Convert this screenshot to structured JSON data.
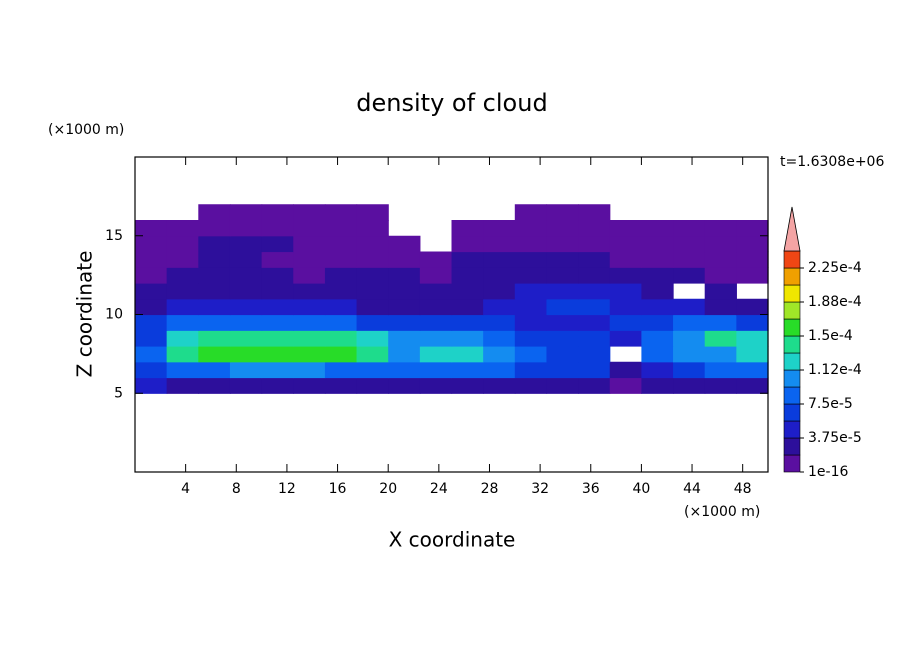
{
  "chart_data": {
    "type": "contour",
    "title": "density of cloud",
    "x_label": "X coordinate",
    "y_label": "Z coordinate",
    "x_unit": "(×1000 m)",
    "y_unit": "(×1000 m)",
    "annotation": "t=1.6308e+06",
    "xlim": [
      0,
      50
    ],
    "ylim": [
      0,
      20
    ],
    "xticks": [
      4,
      8,
      12,
      16,
      20,
      24,
      28,
      32,
      36,
      40,
      44,
      48
    ],
    "yticks": [
      5,
      10,
      15
    ],
    "x": [
      1.25,
      3.75,
      6.25,
      8.75,
      11.25,
      13.75,
      16.25,
      18.75,
      21.25,
      23.75,
      26.25,
      28.75,
      31.25,
      33.75,
      36.25,
      38.75,
      41.25,
      43.75,
      46.25,
      48.75
    ],
    "y": [
      5.5,
      6.5,
      7.5,
      8.5,
      9.5,
      10.5,
      11.5,
      12.5,
      13.5,
      14.5,
      15.5,
      16.5
    ],
    "values": [
      [
        4e-05,
        3e-05,
        3e-05,
        3e-05,
        3e-05,
        3e-05,
        3e-05,
        3e-05,
        2e-05,
        2e-05,
        2e-05,
        2e-05,
        2e-05,
        2e-05,
        2e-05,
        1e-05,
        2e-05,
        2e-05,
        3e-05,
        3e-05
      ],
      [
        6e-05,
        9e-05,
        9e-05,
        0.0001,
        0.0001,
        0.0001,
        9e-05,
        9e-05,
        8e-05,
        8e-05,
        8e-05,
        8e-05,
        7e-05,
        6e-05,
        6e-05,
        3e-05,
        5e-05,
        7e-05,
        8e-05,
        8e-05
      ],
      [
        8e-05,
        0.00014,
        0.000155,
        0.00016,
        0.000155,
        0.00016,
        0.000155,
        0.00014,
        0.00011,
        0.000115,
        0.000115,
        0.00011,
        8e-05,
        7e-05,
        6e-05,
        null,
        8e-05,
        0.0001,
        0.00011,
        0.00012
      ],
      [
        7e-05,
        0.00012,
        0.000135,
        0.00014,
        0.00014,
        0.000145,
        0.00014,
        0.00012,
        0.000105,
        0.0001,
        0.0001,
        9e-05,
        7e-05,
        6e-05,
        6e-05,
        5e-05,
        8e-05,
        0.0001,
        0.000135,
        0.00012
      ],
      [
        6e-05,
        8e-05,
        8e-05,
        8e-05,
        8e-05,
        8e-05,
        8e-05,
        7e-05,
        7e-05,
        6e-05,
        6e-05,
        6e-05,
        5e-05,
        5e-05,
        5e-05,
        6e-05,
        7e-05,
        8e-05,
        8e-05,
        7e-05
      ],
      [
        3e-05,
        4e-05,
        4e-05,
        4e-05,
        4e-05,
        4e-05,
        4e-05,
        3e-05,
        3e-05,
        3e-05,
        3e-05,
        4e-05,
        5e-05,
        6e-05,
        6e-05,
        5e-05,
        4e-05,
        4e-05,
        3e-05,
        3e-05
      ],
      [
        2e-05,
        2e-05,
        2e-05,
        3e-05,
        2e-05,
        2e-05,
        2e-05,
        2e-05,
        2e-05,
        2e-05,
        2e-05,
        3e-05,
        4e-05,
        4e-05,
        5e-05,
        4e-05,
        3e-05,
        null,
        2e-05,
        null
      ],
      [
        1e-05,
        2e-05,
        2e-05,
        2e-05,
        2e-05,
        1e-05,
        2e-05,
        2e-05,
        2e-05,
        1e-05,
        2e-05,
        3e-05,
        3e-05,
        3e-05,
        3e-05,
        2e-05,
        2e-05,
        2e-05,
        1e-05,
        1e-05
      ],
      [
        1e-05,
        1e-05,
        2e-05,
        2e-05,
        1e-05,
        1e-05,
        1e-05,
        1e-05,
        1e-05,
        1e-05,
        2e-05,
        2e-05,
        2e-05,
        2e-05,
        2e-05,
        1e-05,
        1e-05,
        1e-05,
        1e-05,
        1e-05
      ],
      [
        1e-05,
        1e-05,
        2e-05,
        2e-05,
        2e-05,
        1e-05,
        1e-05,
        1e-05,
        1e-05,
        null,
        1e-05,
        1e-05,
        1e-05,
        1e-05,
        1e-05,
        1e-05,
        1e-05,
        1e-05,
        1e-05,
        1e-05
      ],
      [
        5e-06,
        5e-06,
        5e-06,
        5e-06,
        5e-06,
        5e-06,
        5e-06,
        5e-06,
        null,
        null,
        5e-06,
        5e-06,
        5e-06,
        5e-06,
        5e-06,
        5e-06,
        5e-06,
        5e-06,
        5e-06,
        5e-06
      ],
      [
        null,
        null,
        5e-06,
        5e-06,
        5e-06,
        5e-06,
        5e-06,
        5e-06,
        null,
        null,
        null,
        null,
        5e-06,
        5e-06,
        5e-06,
        null,
        null,
        null,
        null,
        null
      ]
    ],
    "colorbar": {
      "levels": [
        1e-16,
        1.875e-05,
        3.75e-05,
        5.625e-05,
        7.5e-05,
        9.375e-05,
        0.0001125,
        0.00013125,
        0.00015,
        0.00016875,
        0.0001875,
        0.00020625,
        0.000225,
        0.00024375
      ],
      "colors": [
        "#5a0fa0",
        "#2d0f9b",
        "#1e1ec8",
        "#0a3cdc",
        "#0a64f0",
        "#148cf0",
        "#1ed2c8",
        "#1edc8c",
        "#28dc28",
        "#a0e628",
        "#f0e600",
        "#f0a000",
        "#f04614"
      ],
      "over_color": "#f4a4a4",
      "ticks": [
        1e-16,
        {
          "value": 3.75e-05,
          "label": "3.75e-5"
        },
        {
          "value": 7.5e-05,
          "label": "7.5e-5"
        },
        {
          "value": 0.0001125,
          "label": "1.12e-4"
        },
        {
          "value": 0.00015,
          "label": "1.5e-4"
        },
        {
          "value": 0.0001875,
          "label": "1.88e-4"
        },
        {
          "value": 0.000225,
          "label": "2.25e-4"
        }
      ]
    }
  }
}
